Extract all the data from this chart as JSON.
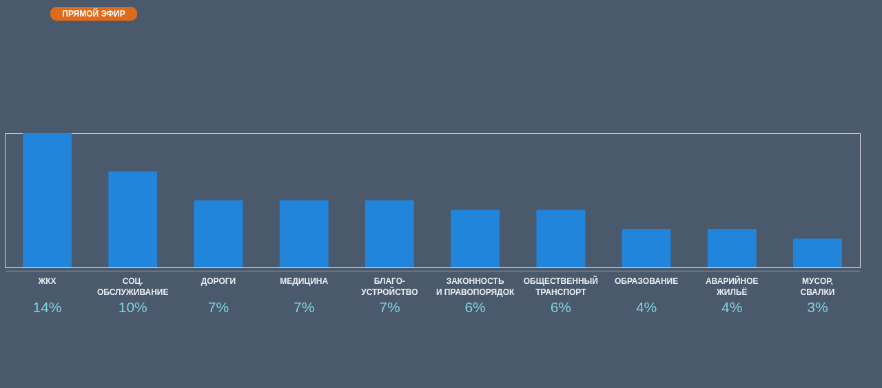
{
  "chart_data": {
    "type": "bar",
    "categories": [
      "ЖКХ",
      "СОЦ.\nОБСЛУЖИВАНИЕ",
      "ДОРОГИ",
      "МЕДИЦИНА",
      "БЛАГО-\nУСТРОЙСТВО",
      "ЗАКОННОСТЬ\nИ ПРАВОПОРЯДОК",
      "ОБЩЕСТВЕННЫЙ\nТРАНСПОРТ",
      "ОБРАЗОВАНИЕ",
      "АВАРИЙНОЕ\nЖИЛЬЁ",
      "МУСОР,\nСВАЛКИ"
    ],
    "values": [
      14,
      10,
      7,
      7,
      7,
      6,
      6,
      4,
      4,
      3
    ],
    "value_labels": [
      "14%",
      "10%",
      "7%",
      "7%",
      "7%",
      "6%",
      "6%",
      "4%",
      "4%",
      "3%"
    ],
    "color": "#2285dc",
    "tick_labels": "x",
    "annotations": [
      "ПРЯМОЙ ЭФИР"
    ]
  }
}
